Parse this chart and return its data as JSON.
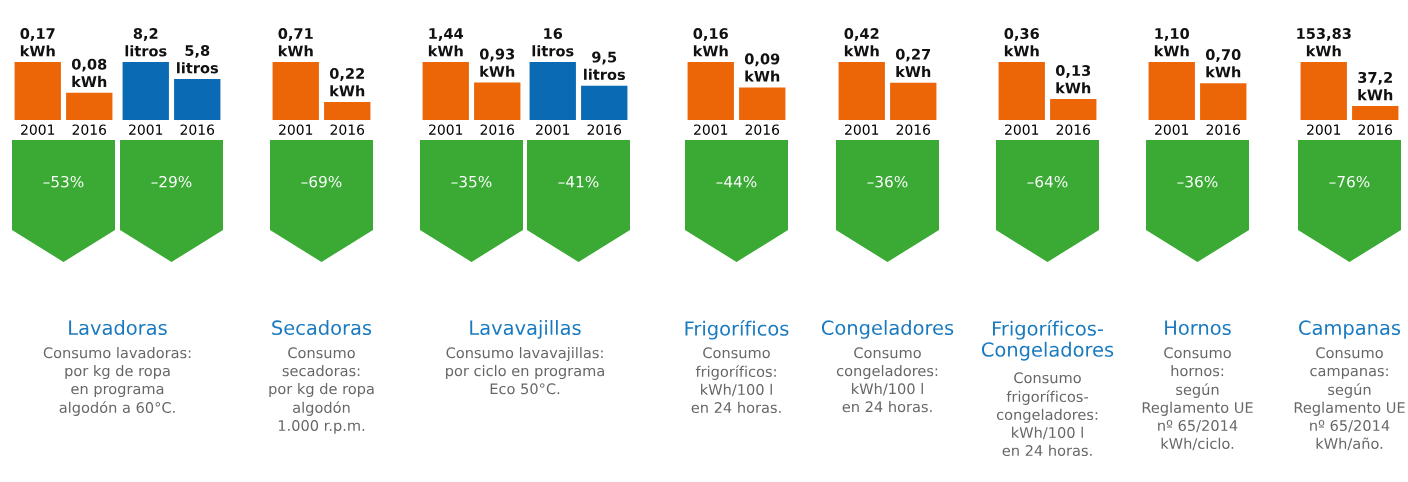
{
  "chart_data": [
    {
      "type": "bar",
      "title": "Lavadoras",
      "subtitle": "Consumo lavadoras:\npor kg de ropa\nen programa\nalgodón a 60°C.",
      "categories": [
        "2001",
        "2016"
      ],
      "values": [
        0.17,
        0.08
      ],
      "value_labels": [
        "0,17\nkWh",
        "0,08\nkWh"
      ],
      "colors": [
        "#ec6608",
        "#ec6608"
      ],
      "annotations": [
        "–53%"
      ],
      "tick_labels": "x"
    },
    {
      "type": "bar",
      "categories": [
        "2001",
        "2016"
      ],
      "values": [
        8.2,
        5.8
      ],
      "value_labels": [
        "8,2\nlitros",
        "5,8\nlitros"
      ],
      "colors": [
        "#0a6ab4",
        "#0a6ab4"
      ],
      "annotations": [
        "–29%"
      ],
      "tick_labels": "x"
    },
    {
      "type": "bar",
      "title": "Secadoras",
      "subtitle": "Consumo\nsecadoras:\npor kg de ropa\nalgodón\n1.000 r.p.m.",
      "categories": [
        "2001",
        "2016"
      ],
      "values": [
        0.71,
        0.22
      ],
      "value_labels": [
        "0,71\nkWh",
        "0,22\nkWh"
      ],
      "colors": [
        "#ec6608",
        "#ec6608"
      ],
      "annotations": [
        "–69%"
      ],
      "tick_labels": "x"
    },
    {
      "type": "bar",
      "title": "Lavavajillas",
      "subtitle": "Consumo lavavajillas:\npor ciclo en programa\nEco 50°C.",
      "categories": [
        "2001",
        "2016"
      ],
      "values": [
        1.44,
        0.93
      ],
      "value_labels": [
        "1,44\nkWh",
        "0,93\nkWh"
      ],
      "colors": [
        "#ec6608",
        "#ec6608"
      ],
      "annotations": [
        "–35%"
      ],
      "tick_labels": "x"
    },
    {
      "type": "bar",
      "categories": [
        "2001",
        "2016"
      ],
      "values": [
        16,
        9.5
      ],
      "value_labels": [
        "16\nlitros",
        "9,5\nlitros"
      ],
      "colors": [
        "#0a6ab4",
        "#0a6ab4"
      ],
      "annotations": [
        "–41%"
      ],
      "tick_labels": "x"
    },
    {
      "type": "bar",
      "title": "Frigoríficos",
      "subtitle": "Consumo\nfrigoríficos:\nkWh/100 l\nen 24 horas.",
      "categories": [
        "2001",
        "2016"
      ],
      "values": [
        0.16,
        0.09
      ],
      "value_labels": [
        "0,16\nkWh",
        "0,09\nkWh"
      ],
      "colors": [
        "#ec6608",
        "#ec6608"
      ],
      "annotations": [
        "–44%"
      ],
      "tick_labels": "x"
    },
    {
      "type": "bar",
      "title": "Congeladores",
      "subtitle": "Consumo\ncongeladores:\nkWh/100 l\nen 24 horas.",
      "categories": [
        "2001",
        "2016"
      ],
      "values": [
        0.42,
        0.27
      ],
      "value_labels": [
        "0,42\nkWh",
        "0,27\nkWh"
      ],
      "colors": [
        "#ec6608",
        "#ec6608"
      ],
      "annotations": [
        "–36%"
      ],
      "tick_labels": "x"
    },
    {
      "type": "bar",
      "title": "Frigoríficos-\nCongeladores",
      "subtitle": "Consumo\nfrigoríficos-\ncongeladores:\nkWh/100 l\nen 24 horas.",
      "categories": [
        "2001",
        "2016"
      ],
      "values": [
        0.36,
        0.13
      ],
      "value_labels": [
        "0,36\nkWh",
        "0,13\nkWh"
      ],
      "colors": [
        "#ec6608",
        "#ec6608"
      ],
      "annotations": [
        "–64%"
      ],
      "tick_labels": "x"
    },
    {
      "type": "bar",
      "title": "Hornos",
      "subtitle": "Consumo\nhornos:\nsegún\nReglamento UE\nnº 65/2014\nkWh/ciclo.",
      "categories": [
        "2001",
        "2016"
      ],
      "values": [
        1.1,
        0.7
      ],
      "value_labels": [
        "1,10\nkWh",
        "0,70\nkWh"
      ],
      "colors": [
        "#ec6608",
        "#ec6608"
      ],
      "annotations": [
        "–36%"
      ],
      "tick_labels": "x"
    },
    {
      "type": "bar",
      "title": "Campanas",
      "subtitle": "Consumo\ncampanas:\nsegún\nReglamento UE\nnº 65/2014\nkWh/año.",
      "categories": [
        "2001",
        "2016"
      ],
      "values": [
        153.83,
        37.2
      ],
      "value_labels": [
        "153,83\nkWh",
        "37,2\nkWh"
      ],
      "colors": [
        "#ec6608",
        "#ec6608"
      ],
      "annotations": [
        "–76%"
      ],
      "tick_labels": "x"
    }
  ]
}
